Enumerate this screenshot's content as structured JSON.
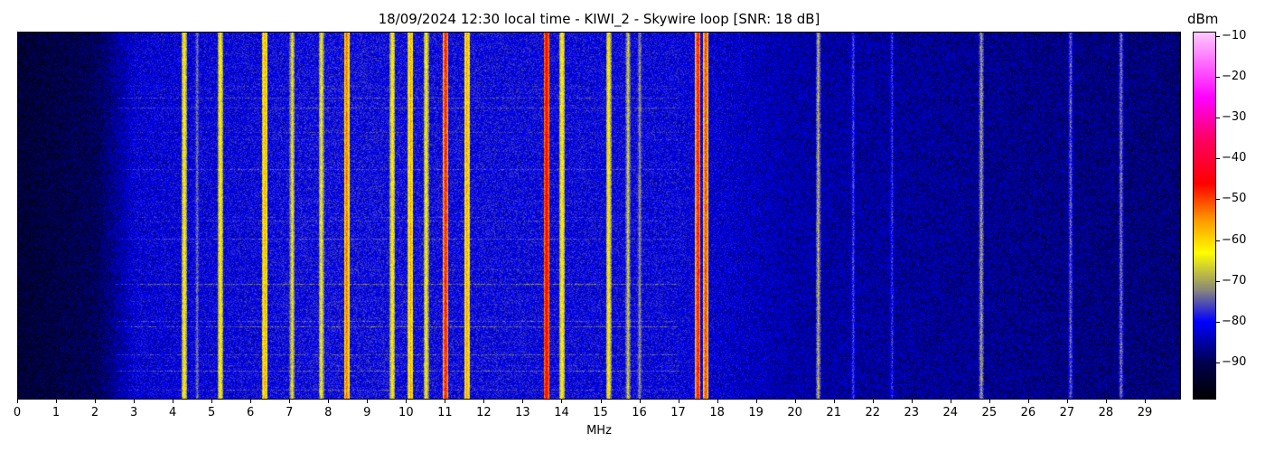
{
  "chart_data": {
    "type": "heatmap",
    "title": "18/09/2024 12:30 local time - KIWI_2 - Skywire loop [SNR: 18 dB]",
    "xlabel": "MHz",
    "xlim": [
      0,
      29.93
    ],
    "xticks": [
      "0",
      "1",
      "2",
      "3",
      "4",
      "5",
      "6",
      "7",
      "8",
      "9",
      "10",
      "11",
      "12",
      "13",
      "14",
      "15",
      "16",
      "17",
      "18",
      "19",
      "20",
      "21",
      "22",
      "23",
      "24",
      "25",
      "26",
      "27",
      "28",
      "29"
    ],
    "colorbar": {
      "label": "dBm",
      "range": [
        -99,
        -9
      ],
      "ticks": [
        "−10",
        "−20",
        "−30",
        "−40",
        "−50",
        "−60",
        "−70",
        "−80",
        "−90"
      ],
      "colormap": [
        [
          -99,
          "#000000"
        ],
        [
          -90,
          "#000050"
        ],
        [
          -80,
          "#0000ff"
        ],
        [
          -72,
          "#8c8a78"
        ],
        [
          -63,
          "#ffff00"
        ],
        [
          -55,
          "#ff9900"
        ],
        [
          -46,
          "#ff0000"
        ],
        [
          -35,
          "#ff0066"
        ],
        [
          -25,
          "#ff00ff"
        ],
        [
          -9,
          "#ffc8ff"
        ]
      ]
    },
    "noise_floor_dbm": [
      [
        0,
        -93
      ],
      [
        2,
        -90
      ],
      [
        3,
        -82
      ],
      [
        8,
        -80
      ],
      [
        17,
        -81
      ],
      [
        20,
        -85
      ],
      [
        30,
        -88
      ]
    ],
    "signals": [
      [
        4.27,
        -61
      ],
      [
        4.6,
        -72
      ],
      [
        5.2,
        -61
      ],
      [
        6.35,
        -56
      ],
      [
        7.05,
        -64
      ],
      [
        7.8,
        -63
      ],
      [
        8.45,
        -52
      ],
      [
        9.63,
        -61
      ],
      [
        10.1,
        -56
      ],
      [
        10.5,
        -62
      ],
      [
        11.0,
        -46
      ],
      [
        11.55,
        -55
      ],
      [
        13.6,
        -43
      ],
      [
        14.0,
        -60
      ],
      [
        15.2,
        -61
      ],
      [
        15.7,
        -66
      ],
      [
        16.0,
        -70
      ],
      [
        17.5,
        -46
      ],
      [
        17.7,
        -49
      ],
      [
        20.6,
        -68
      ],
      [
        21.5,
        -75
      ],
      [
        22.5,
        -76
      ],
      [
        24.8,
        -69
      ],
      [
        27.1,
        -73
      ],
      [
        28.4,
        -72
      ]
    ]
  }
}
